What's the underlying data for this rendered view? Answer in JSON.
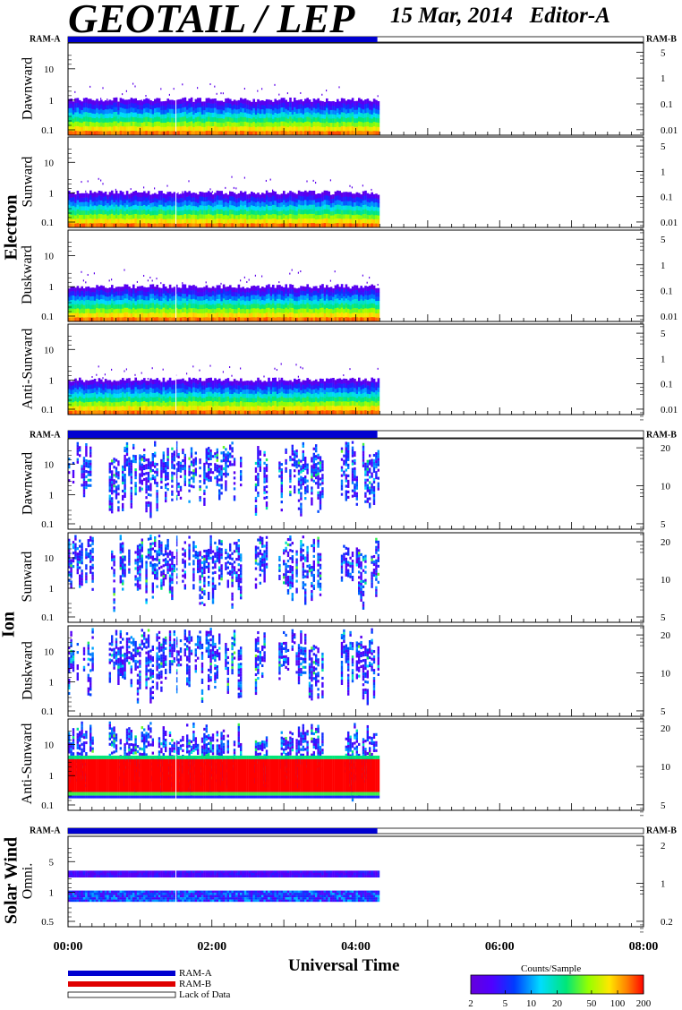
{
  "header": {
    "title": "GEOTAIL / LEP",
    "date": "15 Mar, 2014",
    "editor": "Editor-A"
  },
  "group_labels": {
    "electron": "Electron",
    "ion": "Ion",
    "solar_wind": "Solar Wind"
  },
  "ram_labels": {
    "left": "RAM-A",
    "right": "RAM-B"
  },
  "x_axis": {
    "title": "Universal Time",
    "ticks": [
      "00:00",
      "02:00",
      "04:00",
      "06:00",
      "08:00"
    ]
  },
  "legend": {
    "ram_a": "RAM-A",
    "ram_b": "RAM-B",
    "lack": "Lack of Data"
  },
  "colorbar": {
    "title": "Counts/Sample",
    "ticks": [
      "2",
      "5",
      "10",
      "20",
      "50",
      "100",
      "200"
    ]
  },
  "colors": {
    "ram_a": "#0000d0",
    "ram_b": "#e00000",
    "frame": "#000000"
  },
  "chart_data": {
    "type": "heatmap",
    "time_range": [
      "00:00",
      "08:00"
    ],
    "data_end": "04:18",
    "ram_a_coverage": [
      "00:00",
      "04:18"
    ],
    "panels": [
      {
        "group": "Electron",
        "label": "Dawnward",
        "yticks_left": [
          "10",
          "1",
          "0.1"
        ],
        "yticks_right": [
          "5",
          "1",
          "0.1",
          "0.01"
        ],
        "base": "full"
      },
      {
        "group": "Electron",
        "label": "Sunward",
        "yticks_left": [
          "10",
          "1",
          "0.1"
        ],
        "yticks_right": [
          "5",
          "1",
          "0.1",
          "0.01"
        ],
        "base": "full"
      },
      {
        "group": "Electron",
        "label": "Duskward",
        "yticks_left": [
          "10",
          "1",
          "0.1"
        ],
        "yticks_right": [
          "5",
          "1",
          "0.1",
          "0.01"
        ],
        "base": "full"
      },
      {
        "group": "Electron",
        "label": "Anti-Sunward",
        "yticks_left": [
          "10",
          "1",
          "0.1"
        ],
        "yticks_right": [
          "5",
          "1",
          "0.1",
          "0.01"
        ],
        "base": "full"
      },
      {
        "group": "Ion",
        "label": "Dawnward",
        "yticks_left": [
          "10",
          "1",
          "0.1"
        ],
        "yticks_right": [
          "20",
          "10",
          "5"
        ],
        "base": "patchy"
      },
      {
        "group": "Ion",
        "label": "Sunward",
        "yticks_left": [
          "10",
          "1",
          "0.1"
        ],
        "yticks_right": [
          "20",
          "10",
          "5"
        ],
        "base": "patchy"
      },
      {
        "group": "Ion",
        "label": "Duskward",
        "yticks_left": [
          "10",
          "1",
          "0.1"
        ],
        "yticks_right": [
          "20",
          "10",
          "5"
        ],
        "base": "patchy"
      },
      {
        "group": "Ion",
        "label": "Anti-Sunward",
        "yticks_left": [
          "10",
          "1",
          "0.1"
        ],
        "yticks_right": [
          "20",
          "10",
          "5"
        ],
        "base": "redband"
      },
      {
        "group": "Solar Wind",
        "label": "Omni.",
        "yticks_left": [
          "5",
          "1",
          "0.5"
        ],
        "yticks_right": [
          "2",
          "1",
          "0.2"
        ],
        "base": "twoband"
      }
    ]
  }
}
